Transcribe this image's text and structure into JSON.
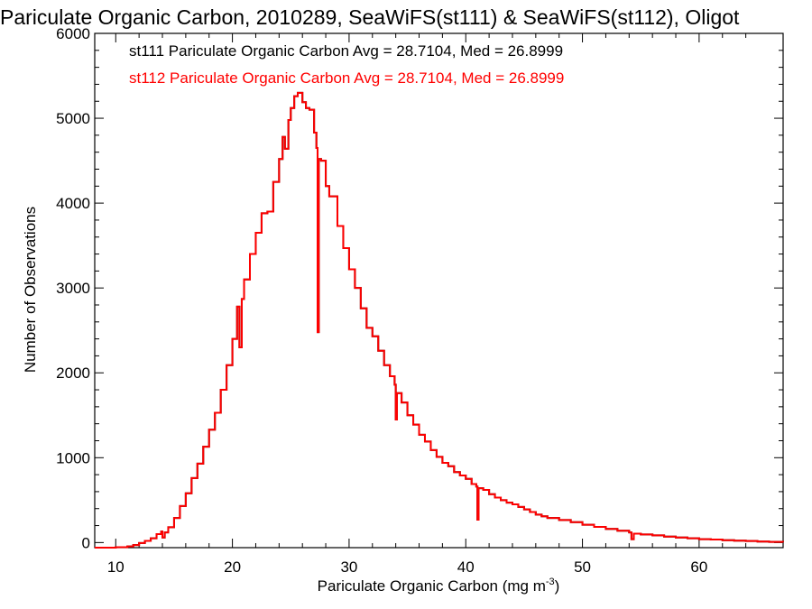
{
  "chart_data": {
    "type": "histogram-step",
    "title": "Pariculate Organic Carbon, 2010289, SeaWiFS(st111) & SeaWiFS(st112), Oligot",
    "xlabel": "Pariculate Organic Carbon (mg m",
    "xlabel_superscript": "-3",
    "xlabel_suffix": ")",
    "ylabel": "Number of Observations",
    "xlim": [
      8.2,
      67.2
    ],
    "ylim": [
      -60,
      6000
    ],
    "xticks": [
      10,
      20,
      30,
      40,
      50,
      60
    ],
    "yticks": [
      0,
      1000,
      2000,
      3000,
      4000,
      5000,
      6000
    ],
    "grid": false,
    "legend_placement": "top-left",
    "series": [
      {
        "name": "st111 Pariculate Organic Carbon Avg = 28.7104, Med = 26.8999",
        "color": "#000000",
        "hidden_behind": "st112"
      },
      {
        "name": "st112 Pariculate Organic Carbon Avg = 28.7104, Med = 26.8999",
        "color": "#ff0000",
        "points": [
          [
            8.2,
            -60
          ],
          [
            9.0,
            -60
          ],
          [
            10.0,
            -55
          ],
          [
            11.0,
            -45
          ],
          [
            11.5,
            -30
          ],
          [
            12.0,
            -5
          ],
          [
            12.5,
            20
          ],
          [
            13.0,
            50
          ],
          [
            13.5,
            100
          ],
          [
            13.9,
            130
          ],
          [
            14.0,
            60
          ],
          [
            14.2,
            120
          ],
          [
            14.5,
            180
          ],
          [
            15.0,
            290
          ],
          [
            15.5,
            430
          ],
          [
            16.0,
            580
          ],
          [
            16.5,
            760
          ],
          [
            17.0,
            930
          ],
          [
            17.5,
            1130
          ],
          [
            18.0,
            1330
          ],
          [
            18.5,
            1530
          ],
          [
            19.0,
            1800
          ],
          [
            19.5,
            2090
          ],
          [
            20.0,
            2400
          ],
          [
            20.4,
            2780
          ],
          [
            20.6,
            2300
          ],
          [
            20.8,
            2870
          ],
          [
            21.0,
            3100
          ],
          [
            21.5,
            3400
          ],
          [
            22.0,
            3650
          ],
          [
            22.5,
            3880
          ],
          [
            23.0,
            3900
          ],
          [
            23.5,
            4250
          ],
          [
            24.0,
            4520
          ],
          [
            24.3,
            4780
          ],
          [
            24.5,
            4640
          ],
          [
            24.8,
            4980
          ],
          [
            25.0,
            5120
          ],
          [
            25.3,
            5260
          ],
          [
            25.6,
            5300
          ],
          [
            26.0,
            5190
          ],
          [
            26.3,
            5120
          ],
          [
            26.6,
            5100
          ],
          [
            27.0,
            4830
          ],
          [
            27.2,
            4650
          ],
          [
            27.3,
            2480
          ],
          [
            27.4,
            4520
          ],
          [
            27.6,
            4500
          ],
          [
            28.0,
            4200
          ],
          [
            28.3,
            4080
          ],
          [
            28.6,
            4080
          ],
          [
            29.0,
            3730
          ],
          [
            29.5,
            3470
          ],
          [
            30.0,
            3220
          ],
          [
            30.5,
            3000
          ],
          [
            31.0,
            2760
          ],
          [
            31.5,
            2530
          ],
          [
            32.0,
            2430
          ],
          [
            32.5,
            2260
          ],
          [
            33.0,
            2090
          ],
          [
            33.5,
            1960
          ],
          [
            33.9,
            1860
          ],
          [
            34.0,
            1450
          ],
          [
            34.1,
            1760
          ],
          [
            34.5,
            1650
          ],
          [
            35.0,
            1500
          ],
          [
            35.5,
            1390
          ],
          [
            36.0,
            1270
          ],
          [
            36.5,
            1190
          ],
          [
            37.0,
            1090
          ],
          [
            37.5,
            1010
          ],
          [
            38.0,
            940
          ],
          [
            38.5,
            900
          ],
          [
            39.0,
            830
          ],
          [
            39.5,
            790
          ],
          [
            40.0,
            750
          ],
          [
            40.5,
            690
          ],
          [
            40.9,
            660
          ],
          [
            41.0,
            270
          ],
          [
            41.1,
            640
          ],
          [
            41.5,
            620
          ],
          [
            42.0,
            570
          ],
          [
            42.5,
            530
          ],
          [
            43.0,
            500
          ],
          [
            43.5,
            470
          ],
          [
            44.0,
            450
          ],
          [
            44.5,
            420
          ],
          [
            45.0,
            390
          ],
          [
            45.5,
            360
          ],
          [
            46.0,
            330
          ],
          [
            46.5,
            310
          ],
          [
            47.0,
            290
          ],
          [
            48.0,
            265
          ],
          [
            49.0,
            240
          ],
          [
            50.0,
            210
          ],
          [
            51.0,
            185
          ],
          [
            52.0,
            160
          ],
          [
            53.0,
            140
          ],
          [
            54.0,
            120
          ],
          [
            54.2,
            40
          ],
          [
            54.4,
            105
          ],
          [
            55.0,
            95
          ],
          [
            56.0,
            85
          ],
          [
            57.0,
            70
          ],
          [
            58.0,
            60
          ],
          [
            59.0,
            50
          ],
          [
            60.0,
            40
          ],
          [
            61.0,
            35
          ],
          [
            62.0,
            28
          ],
          [
            63.0,
            22
          ],
          [
            64.0,
            18
          ],
          [
            65.0,
            12
          ],
          [
            66.0,
            8
          ],
          [
            67.2,
            5
          ]
        ]
      }
    ]
  }
}
